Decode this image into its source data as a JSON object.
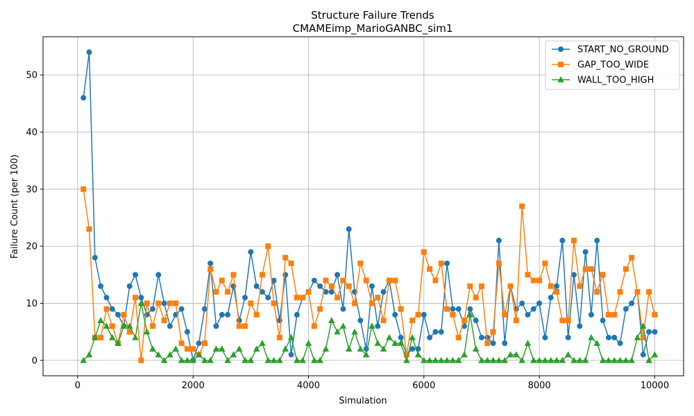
{
  "chart_data": {
    "type": "line",
    "title": "Structure Failure Trends",
    "subtitle": "CMAMEimp_MarioGANBC_sim1",
    "xlabel": "Simulation",
    "ylabel": "Failure Count (per 100)",
    "xlim": [
      -600,
      10500
    ],
    "ylim": [
      -2.7,
      56.7
    ],
    "xticks": [
      0,
      2000,
      4000,
      6000,
      8000,
      10000
    ],
    "yticks": [
      0,
      10,
      20,
      30,
      40,
      50
    ],
    "grid": true,
    "legend_position": "top-right",
    "x": [
      100,
      200,
      300,
      400,
      500,
      600,
      700,
      800,
      900,
      1000,
      1100,
      1200,
      1300,
      1400,
      1500,
      1600,
      1700,
      1800,
      1900,
      2000,
      2100,
      2200,
      2300,
      2400,
      2500,
      2600,
      2700,
      2800,
      2900,
      3000,
      3100,
      3200,
      3300,
      3400,
      3500,
      3600,
      3700,
      3800,
      3900,
      4000,
      4100,
      4200,
      4300,
      4400,
      4500,
      4600,
      4700,
      4800,
      4900,
      5000,
      5100,
      5200,
      5300,
      5400,
      5500,
      5600,
      5700,
      5800,
      5900,
      6000,
      6100,
      6200,
      6300,
      6400,
      6500,
      6600,
      6700,
      6800,
      6900,
      7000,
      7100,
      7200,
      7300,
      7400,
      7500,
      7600,
      7700,
      7800,
      7900,
      8000,
      8100,
      8200,
      8300,
      8400,
      8500,
      8600,
      8700,
      8800,
      8900,
      9000,
      9100,
      9200,
      9300,
      9400,
      9500,
      9600,
      9700,
      9800,
      9900,
      10000
    ],
    "series": [
      {
        "name": "START_NO_GROUND",
        "color": "#1f77b4",
        "marker": "circle",
        "values": [
          46,
          54,
          18,
          13,
          11,
          9,
          8,
          6,
          13,
          15,
          11,
          8,
          9,
          15,
          10,
          6,
          8,
          9,
          5,
          0,
          3,
          9,
          17,
          6,
          8,
          8,
          13,
          7,
          11,
          19,
          13,
          12,
          11,
          14,
          7,
          15,
          1,
          8,
          11,
          12,
          14,
          13,
          12,
          12,
          15,
          9,
          23,
          12,
          7,
          2,
          13,
          6,
          12,
          14,
          8,
          4,
          1,
          2,
          2,
          8,
          4,
          5,
          5,
          17,
          9,
          9,
          6,
          9,
          7,
          4,
          4,
          3,
          21,
          3,
          13,
          9,
          10,
          8,
          9,
          10,
          4,
          11,
          13,
          21,
          4,
          15,
          6,
          19,
          8,
          21,
          7,
          4,
          4,
          3,
          9,
          10,
          12,
          1,
          5,
          5
        ]
      },
      {
        "name": "GAP_TOO_WIDE",
        "color": "#ff7f0e",
        "marker": "square",
        "values": [
          30,
          23,
          4,
          4,
          9,
          6,
          3,
          8,
          5,
          11,
          0,
          10,
          6,
          10,
          7,
          10,
          10,
          3,
          2,
          2,
          1,
          3,
          16,
          12,
          14,
          12,
          15,
          6,
          6,
          10,
          8,
          15,
          20,
          10,
          4,
          18,
          17,
          11,
          11,
          12,
          6,
          9,
          14,
          13,
          11,
          14,
          13,
          10,
          17,
          14,
          10,
          11,
          7,
          14,
          14,
          9,
          1,
          7,
          8,
          19,
          16,
          14,
          17,
          9,
          8,
          4,
          7,
          13,
          11,
          13,
          3,
          5,
          17,
          8,
          13,
          7,
          27,
          15,
          14,
          14,
          17,
          13,
          12,
          7,
          7,
          21,
          13,
          16,
          16,
          12,
          15,
          8,
          8,
          12,
          16,
          18,
          12,
          4,
          12,
          8
        ]
      },
      {
        "name": "WALL_TOO_HIGH",
        "color": "#2ca02c",
        "marker": "triangle",
        "values": [
          0,
          1,
          4,
          7,
          6,
          4,
          3,
          6,
          6,
          4,
          10,
          5,
          2,
          1,
          0,
          1,
          2,
          0,
          0,
          0,
          1,
          0,
          0,
          2,
          2,
          0,
          1,
          2,
          0,
          0,
          2,
          3,
          0,
          0,
          0,
          2,
          4,
          0,
          0,
          3,
          0,
          0,
          2,
          7,
          5,
          6,
          2,
          5,
          2,
          1,
          6,
          3,
          2,
          4,
          3,
          3,
          0,
          4,
          1,
          0,
          0,
          0,
          0,
          0,
          0,
          0,
          1,
          8,
          2,
          0,
          0,
          0,
          0,
          0,
          1,
          1,
          0,
          3,
          0,
          0,
          0,
          0,
          0,
          0,
          1,
          0,
          0,
          0,
          4,
          3,
          0,
          0,
          0,
          0,
          0,
          0,
          4,
          6,
          0,
          1
        ]
      }
    ]
  }
}
